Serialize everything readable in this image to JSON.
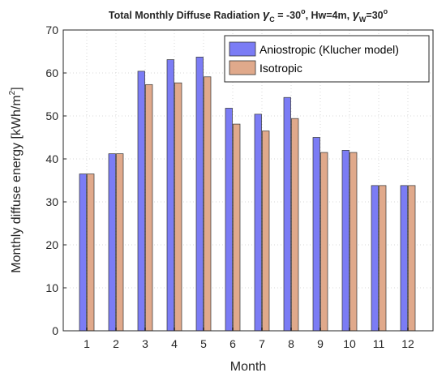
{
  "chart_data": {
    "type": "bar",
    "title_main": "Total Monthly Diffuse Radiation ",
    "title_sub_c": "C",
    "title_mid": " = -30",
    "title_deg": "o",
    "title_hw": ", Hw=4m, ",
    "title_sub_w": "W",
    "title_end": "=30",
    "title_symbol": "γ",
    "xlabel": "Month",
    "ylabel_main": "Monthly diffuse energy [kWh/m",
    "ylabel_sup": "2",
    "ylabel_close": "]",
    "categories": [
      "1",
      "2",
      "3",
      "4",
      "5",
      "6",
      "7",
      "8",
      "9",
      "10",
      "11",
      "12"
    ],
    "yticks": [
      0,
      10,
      20,
      30,
      40,
      50,
      60,
      70
    ],
    "ylim": [
      0,
      70
    ],
    "grid": true,
    "legend_placement": "top-right",
    "series": [
      {
        "name": "Aniostropic (Klucher model)",
        "color": "#7b7cf5",
        "values": [
          36.5,
          41.2,
          60.4,
          63.1,
          63.7,
          51.8,
          50.4,
          54.3,
          45.0,
          42.0,
          33.8,
          33.8
        ]
      },
      {
        "name": "Isotropic",
        "color": "#e0a98b",
        "values": [
          36.5,
          41.2,
          57.3,
          57.7,
          59.1,
          48.1,
          46.5,
          49.4,
          41.5,
          41.5,
          33.8,
          33.8
        ]
      }
    ]
  }
}
